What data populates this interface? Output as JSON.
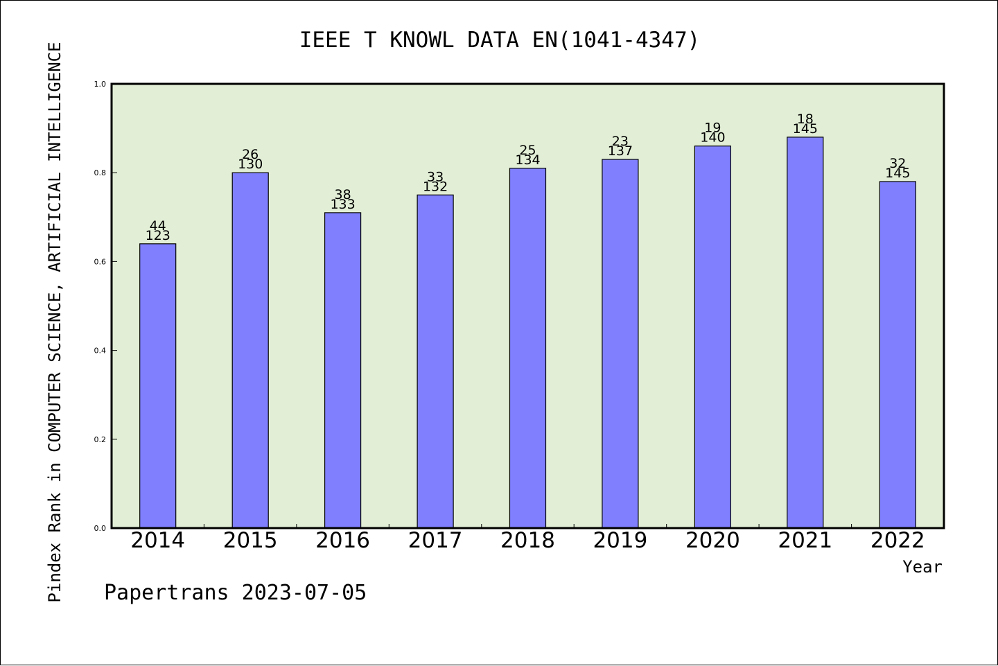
{
  "chart_data": {
    "type": "bar",
    "title": "IEEE T KNOWL DATA EN(1041-4347)",
    "xlabel": "Year",
    "ylabel": "Pindex Rank in COMPUTER SCIENCE, ARTIFICIAL INTELLIGENCE",
    "ylim": [
      0,
      1.0
    ],
    "yticks": [
      "0.0",
      "0.2",
      "0.4",
      "0.6",
      "0.8",
      "1.0"
    ],
    "categories": [
      "2014",
      "2015",
      "2016",
      "2017",
      "2018",
      "2019",
      "2020",
      "2021",
      "2022"
    ],
    "values": [
      0.64,
      0.8,
      0.71,
      0.75,
      0.81,
      0.83,
      0.86,
      0.88,
      0.78
    ],
    "rank": [
      "44",
      "26",
      "38",
      "33",
      "25",
      "23",
      "19",
      "18",
      "32"
    ],
    "total": [
      "123",
      "130",
      "133",
      "132",
      "134",
      "137",
      "140",
      "145",
      "145"
    ],
    "grid": false,
    "colors": {
      "plot_background": "#e2efd6",
      "bar_fill": "#8080ff",
      "bar_stroke": "#000000"
    }
  },
  "footer": {
    "credit": "Papertrans 2023-07-05"
  }
}
